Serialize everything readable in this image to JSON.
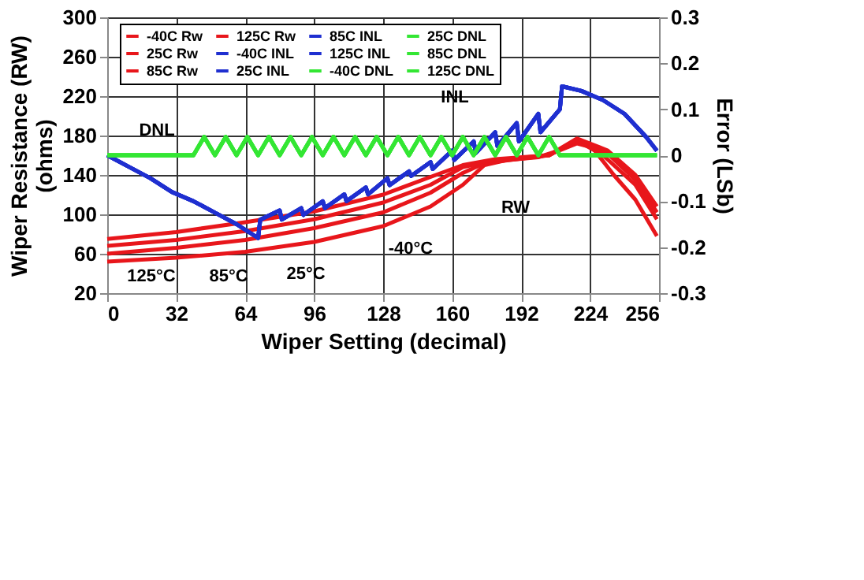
{
  "chart_data": {
    "type": "line",
    "xlabel": "Wiper Setting (decimal)",
    "ylabel": "Wiper Resistance (RW)\n(ohms)",
    "y2label": "Error (LSb)",
    "xlim": [
      0,
      256
    ],
    "xticks": [
      0,
      32,
      64,
      96,
      128,
      160,
      192,
      224,
      256
    ],
    "ylim": [
      20,
      300
    ],
    "yticks": [
      20,
      60,
      100,
      140,
      180,
      220,
      260,
      300
    ],
    "y2lim": [
      -0.3,
      0.3
    ],
    "y2ticks": [
      -0.3,
      -0.2,
      -0.1,
      0,
      0.1,
      0.2,
      0.3
    ],
    "grid": true,
    "legend": "top",
    "line_style": "solid",
    "series": [
      {
        "name": "-40C Rw",
        "color": "#e8161b",
        "axis": "y",
        "x": [
          0,
          32,
          64,
          96,
          128,
          150,
          165,
          175,
          185,
          200,
          210,
          218,
          225,
          235,
          245,
          255
        ],
        "values": [
          52,
          56,
          62,
          72,
          88,
          108,
          130,
          150,
          155,
          158,
          165,
          172,
          168,
          140,
          115,
          78
        ]
      },
      {
        "name": "25C Rw",
        "color": "#e8161b",
        "axis": "y",
        "x": [
          0,
          32,
          64,
          96,
          128,
          150,
          165,
          175,
          190,
          205,
          218,
          230,
          245,
          255
        ],
        "values": [
          60,
          66,
          74,
          86,
          102,
          122,
          142,
          152,
          156,
          160,
          175,
          160,
          130,
          95
        ]
      },
      {
        "name": "85C Rw",
        "color": "#e8161b",
        "axis": "y",
        "x": [
          0,
          32,
          64,
          96,
          128,
          150,
          165,
          180,
          205,
          218,
          232,
          245,
          255
        ],
        "values": [
          68,
          74,
          83,
          95,
          112,
          130,
          148,
          155,
          160,
          176,
          162,
          135,
          102
        ]
      },
      {
        "name": "125C Rw",
        "color": "#e8161b",
        "axis": "y",
        "x": [
          0,
          32,
          64,
          96,
          128,
          150,
          165,
          180,
          205,
          218,
          232,
          245,
          255
        ],
        "values": [
          75,
          82,
          92,
          103,
          120,
          138,
          150,
          156,
          160,
          177,
          165,
          140,
          108
        ]
      },
      {
        "name": "-40C INL",
        "color": "#1f2fd0",
        "axis": "y2",
        "x": [
          0,
          10,
          20,
          30,
          40,
          50,
          60,
          70,
          71,
          80,
          81,
          90,
          91,
          100,
          101,
          110,
          111,
          120,
          121,
          130,
          131,
          140,
          141,
          150,
          151,
          160,
          161,
          170,
          171,
          180,
          181,
          190,
          191,
          200,
          201,
          210,
          211,
          220,
          230,
          240,
          250,
          255
        ],
        "values": [
          0,
          -0.025,
          -0.05,
          -0.08,
          -0.1,
          -0.125,
          -0.15,
          -0.18,
          -0.14,
          -0.12,
          -0.14,
          -0.115,
          -0.13,
          -0.1,
          -0.115,
          -0.085,
          -0.1,
          -0.07,
          -0.085,
          -0.05,
          -0.065,
          -0.035,
          -0.045,
          -0.015,
          -0.03,
          0.01,
          -0.01,
          0.03,
          0.005,
          0.05,
          0.02,
          0.07,
          0.03,
          0.09,
          0.05,
          0.1,
          0.15,
          0.14,
          0.12,
          0.09,
          0.04,
          0.01
        ]
      },
      {
        "name": "25C INL",
        "color": "#1f2fd0",
        "axis": "y2",
        "x": [
          0,
          10,
          20,
          30,
          40,
          50,
          60,
          70,
          71,
          80,
          81,
          90,
          91,
          100,
          101,
          110,
          111,
          120,
          121,
          130,
          131,
          140,
          141,
          150,
          151,
          160,
          161,
          170,
          171,
          180,
          181,
          190,
          191,
          200,
          201,
          210,
          211,
          220,
          230,
          240,
          250,
          255
        ],
        "values": [
          0,
          -0.025,
          -0.05,
          -0.08,
          -0.1,
          -0.125,
          -0.15,
          -0.18,
          -0.14,
          -0.12,
          -0.14,
          -0.115,
          -0.13,
          -0.1,
          -0.115,
          -0.085,
          -0.1,
          -0.07,
          -0.085,
          -0.05,
          -0.065,
          -0.035,
          -0.045,
          -0.015,
          -0.03,
          0.01,
          -0.01,
          0.03,
          0.005,
          0.05,
          0.02,
          0.07,
          0.03,
          0.09,
          0.05,
          0.1,
          0.15,
          0.14,
          0.12,
          0.09,
          0.04,
          0.01
        ]
      },
      {
        "name": "85C INL",
        "color": "#1f2fd0",
        "axis": "y2",
        "x": [
          0,
          10,
          20,
          30,
          40,
          50,
          60,
          70,
          71,
          80,
          81,
          90,
          91,
          100,
          101,
          110,
          111,
          120,
          121,
          130,
          131,
          140,
          141,
          150,
          151,
          160,
          161,
          170,
          171,
          180,
          181,
          190,
          191,
          200,
          201,
          210,
          211,
          220,
          230,
          240,
          250,
          255
        ],
        "values": [
          0,
          -0.025,
          -0.05,
          -0.08,
          -0.1,
          -0.125,
          -0.15,
          -0.18,
          -0.14,
          -0.12,
          -0.14,
          -0.115,
          -0.13,
          -0.1,
          -0.115,
          -0.085,
          -0.1,
          -0.07,
          -0.085,
          -0.05,
          -0.065,
          -0.035,
          -0.045,
          -0.015,
          -0.03,
          0.01,
          -0.01,
          0.03,
          0.005,
          0.05,
          0.02,
          0.07,
          0.03,
          0.09,
          0.05,
          0.1,
          0.15,
          0.14,
          0.12,
          0.09,
          0.04,
          0.01
        ]
      },
      {
        "name": "125C INL",
        "color": "#1f2fd0",
        "axis": "y2",
        "x": [
          0,
          10,
          20,
          30,
          40,
          50,
          60,
          70,
          71,
          80,
          81,
          90,
          91,
          100,
          101,
          110,
          111,
          120,
          121,
          130,
          131,
          140,
          141,
          150,
          151,
          160,
          161,
          170,
          171,
          180,
          181,
          190,
          191,
          200,
          201,
          210,
          211,
          220,
          230,
          240,
          250,
          255
        ],
        "values": [
          0,
          -0.025,
          -0.05,
          -0.08,
          -0.1,
          -0.125,
          -0.15,
          -0.18,
          -0.14,
          -0.12,
          -0.14,
          -0.115,
          -0.13,
          -0.1,
          -0.115,
          -0.085,
          -0.1,
          -0.07,
          -0.085,
          -0.05,
          -0.065,
          -0.035,
          -0.045,
          -0.015,
          -0.03,
          0.01,
          -0.01,
          0.03,
          0.005,
          0.05,
          0.02,
          0.07,
          0.03,
          0.09,
          0.05,
          0.1,
          0.15,
          0.14,
          0.12,
          0.09,
          0.04,
          0.01
        ]
      },
      {
        "name": "-40C DNL",
        "color": "#33e633",
        "axis": "y2",
        "x": [
          0,
          40,
          45,
          50,
          55,
          60,
          65,
          70,
          75,
          80,
          85,
          90,
          95,
          100,
          105,
          110,
          115,
          120,
          125,
          130,
          135,
          140,
          145,
          150,
          155,
          160,
          165,
          170,
          175,
          180,
          185,
          190,
          195,
          200,
          205,
          210,
          255
        ],
        "values": [
          0,
          0,
          0.04,
          0,
          0.04,
          0,
          0.04,
          0,
          0.04,
          0,
          0.04,
          0,
          0.04,
          0,
          0.04,
          0,
          0.04,
          0,
          0.04,
          0,
          0.04,
          0,
          0.04,
          0,
          0.04,
          0,
          0.04,
          0,
          0.04,
          0,
          0.04,
          0,
          0.04,
          0,
          0.04,
          0,
          0
        ]
      },
      {
        "name": "25C DNL",
        "color": "#33e633",
        "axis": "y2",
        "x": [
          0,
          40,
          45,
          50,
          55,
          60,
          65,
          70,
          75,
          80,
          85,
          90,
          95,
          100,
          105,
          110,
          115,
          120,
          125,
          130,
          135,
          140,
          145,
          150,
          155,
          160,
          165,
          170,
          175,
          180,
          185,
          190,
          195,
          200,
          205,
          210,
          255
        ],
        "values": [
          0,
          0,
          0.04,
          0,
          0.04,
          0,
          0.04,
          0,
          0.04,
          0,
          0.04,
          0,
          0.04,
          0,
          0.04,
          0,
          0.04,
          0,
          0.04,
          0,
          0.04,
          0,
          0.04,
          0,
          0.04,
          0,
          0.04,
          0,
          0.04,
          0,
          0.04,
          0,
          0.04,
          0,
          0.04,
          0,
          0
        ]
      },
      {
        "name": "85C DNL",
        "color": "#33e633",
        "axis": "y2",
        "x": [
          0,
          40,
          45,
          50,
          55,
          60,
          65,
          70,
          75,
          80,
          85,
          90,
          95,
          100,
          105,
          110,
          115,
          120,
          125,
          130,
          135,
          140,
          145,
          150,
          155,
          160,
          165,
          170,
          175,
          180,
          185,
          190,
          195,
          200,
          205,
          210,
          255
        ],
        "values": [
          0,
          0,
          0.04,
          0,
          0.04,
          0,
          0.04,
          0,
          0.04,
          0,
          0.04,
          0,
          0.04,
          0,
          0.04,
          0,
          0.04,
          0,
          0.04,
          0,
          0.04,
          0,
          0.04,
          0,
          0.04,
          0,
          0.04,
          0,
          0.04,
          0,
          0.04,
          0,
          0.04,
          0,
          0.04,
          0,
          0
        ]
      },
      {
        "name": "125C DNL",
        "color": "#33e633",
        "axis": "y2",
        "x": [
          0,
          40,
          45,
          50,
          55,
          60,
          65,
          70,
          75,
          80,
          85,
          90,
          95,
          100,
          105,
          110,
          115,
          120,
          125,
          130,
          135,
          140,
          145,
          150,
          155,
          160,
          165,
          170,
          175,
          180,
          185,
          190,
          195,
          200,
          205,
          210,
          255
        ],
        "values": [
          0,
          0,
          0.04,
          0,
          0.04,
          0,
          0.04,
          0,
          0.04,
          0,
          0.04,
          0,
          0.04,
          0,
          0.04,
          0,
          0.04,
          0,
          0.04,
          0,
          0.04,
          0,
          0.04,
          0,
          0.04,
          0,
          0.04,
          0,
          0.04,
          0,
          0.04,
          0,
          0.04,
          0,
          0.04,
          0,
          0
        ]
      }
    ],
    "annotations": [
      "DNL",
      "INL",
      "RW",
      "-40°C",
      "25°C",
      "85°C",
      "125°C"
    ]
  }
}
